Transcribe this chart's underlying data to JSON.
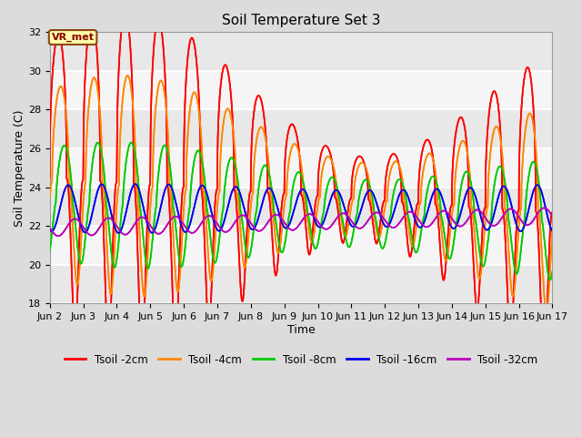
{
  "title": "Soil Temperature Set 3",
  "xlabel": "Time",
  "ylabel": "Soil Temperature (C)",
  "ylim": [
    18,
    32
  ],
  "yticks": [
    18,
    20,
    22,
    24,
    26,
    28,
    30,
    32
  ],
  "x_start": 2,
  "x_end": 17,
  "n_points": 3000,
  "annotation_text": "VR_met",
  "series": [
    {
      "label": "Tsoil -2cm",
      "color": "#FF0000",
      "amplitude": 5.5,
      "baseline": 24.5,
      "period": 1.0,
      "phase": 0.0,
      "trend": -0.12,
      "asymmetry": 2.5,
      "amp_var": 0.6
    },
    {
      "label": "Tsoil -4cm",
      "color": "#FF8800",
      "amplitude": 3.8,
      "baseline": 24.3,
      "period": 1.0,
      "phase": 0.07,
      "trend": -0.1,
      "asymmetry": 2.0,
      "amp_var": 0.5
    },
    {
      "label": "Tsoil -8cm",
      "color": "#00CC00",
      "amplitude": 2.5,
      "baseline": 23.2,
      "period": 1.0,
      "phase": 0.18,
      "trend": -0.06,
      "asymmetry": 1.5,
      "amp_var": 0.3
    },
    {
      "label": "Tsoil -16cm",
      "color": "#0000EE",
      "amplitude": 1.1,
      "baseline": 22.9,
      "period": 1.0,
      "phase": 0.3,
      "trend": 0.0,
      "asymmetry": 1.0,
      "amp_var": 0.15
    },
    {
      "label": "Tsoil -32cm",
      "color": "#BB00BB",
      "amplitude": 0.42,
      "baseline": 21.9,
      "period": 1.0,
      "phase": 0.5,
      "trend": 0.04,
      "asymmetry": 1.0,
      "amp_var": 0.05
    }
  ],
  "xtick_labels": [
    "Jun 2",
    "Jun 3",
    "Jun 4",
    "Jun 5",
    "Jun 6",
    "Jun 7",
    "Jun 8",
    "Jun 9",
    "Jun 10",
    "Jun 11",
    "Jun 12",
    "Jun 13",
    "Jun 14",
    "Jun 15",
    "Jun 16",
    "Jun 17"
  ],
  "xtick_positions": [
    2,
    3,
    4,
    5,
    6,
    7,
    8,
    9,
    10,
    11,
    12,
    13,
    14,
    15,
    16,
    17
  ],
  "bg_color": "#DCDCDC",
  "plot_bg_color": "#F2F2F2",
  "grid_color": "#FFFFFF",
  "linewidth": 1.2
}
